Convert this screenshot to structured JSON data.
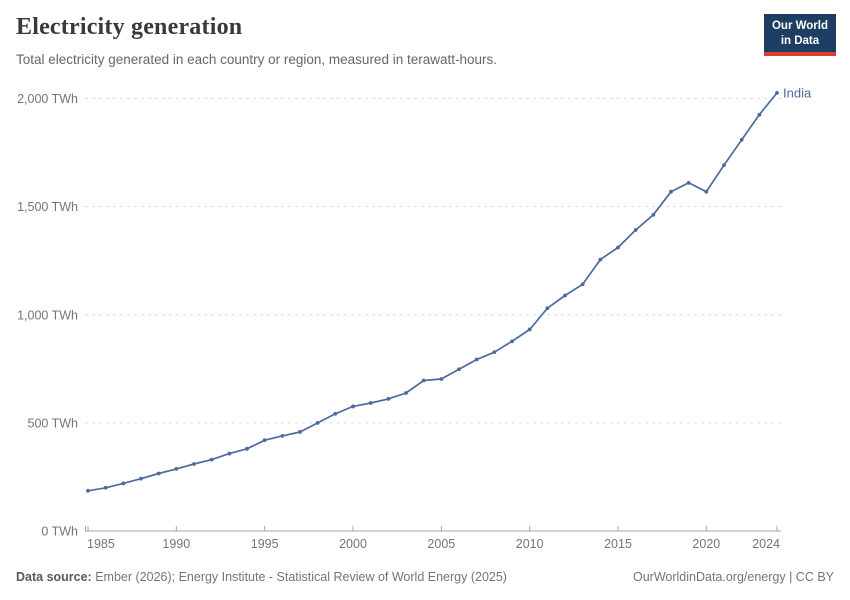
{
  "header": {
    "title": "Electricity generation",
    "subtitle": "Total electricity generated in each country or region, measured in terawatt-hours."
  },
  "logo": {
    "line1": "Our World",
    "line2": "in Data",
    "bg_color": "#1d3d63",
    "accent_color": "#dc3e32"
  },
  "chart_data": {
    "type": "line",
    "title": "Electricity generation",
    "unit": "TWh",
    "grid": "horizontal-dashed",
    "legend_position": "end-of-line-label",
    "x": [
      1985,
      1986,
      1987,
      1988,
      1989,
      1990,
      1991,
      1992,
      1993,
      1994,
      1995,
      1996,
      1997,
      1998,
      1999,
      2000,
      2001,
      2002,
      2003,
      2004,
      2005,
      2006,
      2007,
      2008,
      2009,
      2010,
      2011,
      2012,
      2013,
      2014,
      2015,
      2016,
      2017,
      2018,
      2019,
      2020,
      2021,
      2022,
      2023,
      2024
    ],
    "series": [
      {
        "name": "India",
        "color": "#4c6a9c",
        "values": [
          186,
          200,
          220,
          242,
          266,
          287,
          310,
          330,
          358,
          380,
          420,
          440,
          458,
          500,
          542,
          576,
          592,
          611,
          638,
          696,
          703,
          748,
          793,
          827,
          877,
          932,
          1030,
          1089,
          1141,
          1255,
          1311,
          1392,
          1462,
          1569,
          1610,
          1569,
          1692,
          1809,
          1925,
          2026
        ]
      }
    ],
    "x_ticks": [
      1985,
      1990,
      1995,
      2000,
      2005,
      2010,
      2015,
      2020,
      2024
    ],
    "x_tick_labels": [
      "1985",
      "1990",
      "1995",
      "2000",
      "2005",
      "2010",
      "2015",
      "2020",
      "2024"
    ],
    "y_ticks": [
      0,
      500,
      1000,
      1500,
      2000
    ],
    "y_tick_labels": [
      "0 TWh",
      "500 TWh",
      "1,000 TWh",
      "1,500 TWh",
      "2,000 TWh"
    ],
    "ylim": [
      0,
      2000
    ],
    "axis_color": "#a5a5a5",
    "grid_color": "#dddddd",
    "tick_label_color": "#757575"
  },
  "footer": {
    "source_label": "Data source:",
    "source_text": " Ember (2026); Energy Institute - Statistical Review of World Energy (2025)",
    "link": "OurWorldinData.org/energy | CC BY"
  }
}
